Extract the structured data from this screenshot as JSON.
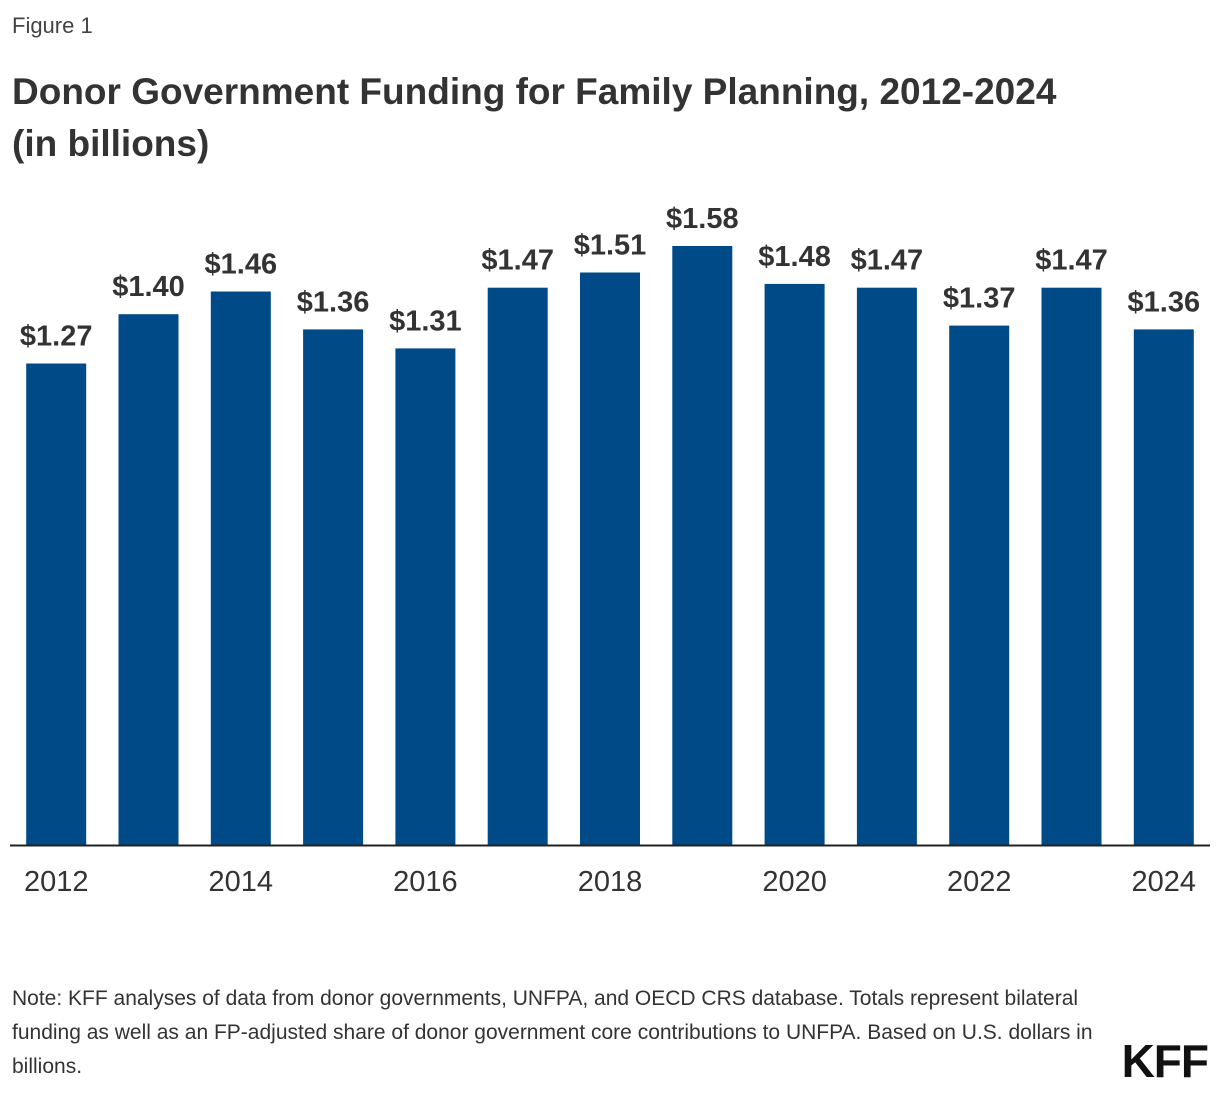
{
  "figure_label": "Figure 1",
  "title_line1": "Donor Government Funding for Family Planning, 2012-2024",
  "title_line2": "(in billions)",
  "note": "Note: KFF analyses of data from donor governments, UNFPA, and OECD CRS database. Totals represent bilateral funding as well as an FP-adjusted share of donor government core contributions to UNFPA. Based on U.S. dollars in billions.",
  "logo_text": "KFF",
  "colors": {
    "bar": "#004b87",
    "axis": "#222222"
  },
  "chart_data": {
    "type": "bar",
    "title": "Donor Government Funding for Family Planning, 2012-2024 (in billions)",
    "xlabel": "",
    "ylabel": "",
    "categories": [
      "2012",
      "2013",
      "2014",
      "2015",
      "2016",
      "2017",
      "2018",
      "2019",
      "2020",
      "2021",
      "2022",
      "2023",
      "2024"
    ],
    "values": [
      1.27,
      1.4,
      1.46,
      1.36,
      1.31,
      1.47,
      1.51,
      1.58,
      1.48,
      1.47,
      1.37,
      1.47,
      1.36
    ],
    "data_labels": [
      "$1.27",
      "$1.40",
      "$1.46",
      "$1.36",
      "$1.31",
      "$1.47",
      "$1.51",
      "$1.58",
      "$1.48",
      "$1.47",
      "$1.37",
      "$1.47",
      "$1.36"
    ],
    "tick_labels": [
      "2012",
      "",
      "2014",
      "",
      "2016",
      "",
      "2018",
      "",
      "2020",
      "",
      "2022",
      "",
      "2024"
    ],
    "ylim": [
      0,
      1.58
    ],
    "grid": false,
    "legend": "none"
  }
}
